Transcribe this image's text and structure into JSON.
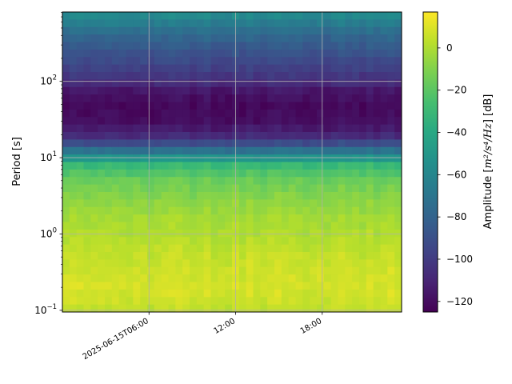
{
  "chart_data": {
    "type": "heatmap",
    "title": "",
    "xlabel": "",
    "ylabel": "Period [s]",
    "x_axis": {
      "kind": "time",
      "start": "2025-06-15T00:00",
      "end": "2025-06-15T23:30",
      "ticks": [
        {
          "value": "2025-06-15T06:00",
          "label": "2025-06-15T06:00"
        },
        {
          "value": "2025-06-15T12:00",
          "label": "12:00"
        },
        {
          "value": "2025-06-15T18:00",
          "label": "18:00"
        }
      ]
    },
    "y_axis": {
      "scale": "log",
      "range": [
        0.095,
        810
      ],
      "ticks": [
        {
          "value": 0.1,
          "base": "10",
          "exp": "−1"
        },
        {
          "value": 1,
          "base": "10",
          "exp": "0"
        },
        {
          "value": 10,
          "base": "10",
          "exp": "1"
        },
        {
          "value": 100,
          "base": "10",
          "exp": "2"
        }
      ]
    },
    "grid": true,
    "colorbar": {
      "label_prefix": "Amplitude [",
      "label_math": "m²/s⁴/Hz",
      "label_suffix": "] [dB]",
      "range": [
        -125,
        17
      ],
      "ticks": [
        {
          "value": 0,
          "label": "0"
        },
        {
          "value": -20,
          "label": "−20"
        },
        {
          "value": -40,
          "label": "−40"
        },
        {
          "value": -60,
          "label": "−60"
        },
        {
          "value": -80,
          "label": "−80"
        },
        {
          "value": -100,
          "label": "−100"
        },
        {
          "value": -120,
          "label": "−120"
        }
      ],
      "colormap": "viridis"
    },
    "profile": {
      "periods_s": [
        0.1,
        0.2,
        0.5,
        1,
        2,
        5,
        8,
        10,
        15,
        20,
        30,
        50,
        80,
        100,
        200,
        400,
        700
      ],
      "amplitude_db": [
        4,
        9,
        5,
        1,
        -4,
        -15,
        -30,
        -52,
        -90,
        -110,
        -120,
        -122,
        -115,
        -105,
        -92,
        -78,
        -58
      ]
    }
  }
}
